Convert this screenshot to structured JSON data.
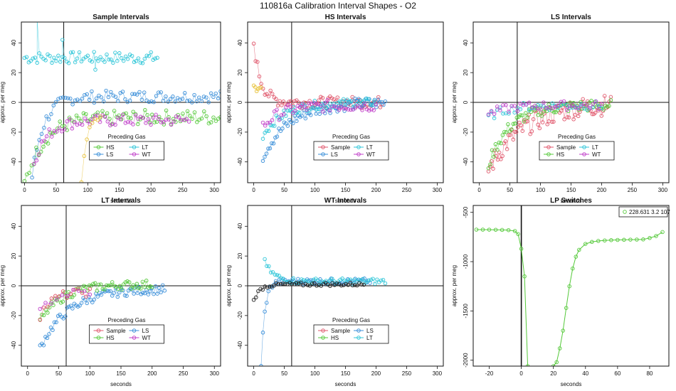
{
  "suptitle": "110816a   Calibration Interval Shapes - O2",
  "chart_data": [
    {
      "type": "scatter",
      "title": "Sample Intervals",
      "xlabel": "seconds",
      "ylabel": "approx. per meg",
      "xlim": [
        -5,
        310
      ],
      "ylim": [
        -54,
        54
      ],
      "xticks": [
        0,
        50,
        100,
        150,
        200,
        250,
        300
      ],
      "yticks": [
        -40,
        -20,
        0,
        20,
        40
      ],
      "vline": 62,
      "hline": 0,
      "legend": {
        "title": "Preceding Gas",
        "placement": "bottom-center",
        "columns": 2,
        "entries": [
          {
            "label": "HS",
            "color": "#55C93A"
          },
          {
            "label": "LT",
            "color": "#2FC6D8"
          },
          {
            "label": "LS",
            "color": "#3A8FD9"
          },
          {
            "label": "WT",
            "color": "#C03FC9"
          }
        ]
      },
      "series": [
        {
          "name": "LT",
          "color": "#2FC6D8",
          "x0": 0,
          "x1": 210,
          "n": 64,
          "start": 30,
          "end": 34,
          "tau": 0,
          "noise": 4,
          "spike": [
            [
              20,
              56
            ],
            [
              60,
              42
            ],
            [
              112,
              22
            ]
          ]
        },
        {
          "name": "LS",
          "color": "#3A8FD9",
          "x0": 12,
          "x1": 310,
          "n": 80,
          "start": -50,
          "end": 4,
          "tau": 18,
          "noise": 4
        },
        {
          "name": "HS",
          "color": "#55C93A",
          "x0": 0,
          "x1": 310,
          "n": 84,
          "start": -55,
          "end": -10,
          "tau": 30,
          "noise": 5
        },
        {
          "name": "WT",
          "color": "#C03FC9",
          "x0": 15,
          "x1": 260,
          "n": 62,
          "start": -40,
          "end": -12,
          "tau": 22,
          "noise": 4
        },
        {
          "name": "Sample",
          "color": "#E8C23A",
          "x0": 90,
          "x1": 120,
          "n": 8,
          "start": -52,
          "end": -10,
          "tau": 8,
          "noise": 2
        }
      ]
    },
    {
      "type": "scatter",
      "title": "HS Intervals",
      "xlabel": "seconds",
      "ylabel": "approx. per meg",
      "xlim": [
        -10,
        310
      ],
      "ylim": [
        -54,
        54
      ],
      "xticks": [
        0,
        50,
        100,
        150,
        200,
        250,
        300
      ],
      "yticks": [
        -40,
        -20,
        0,
        20,
        40
      ],
      "vline": 62,
      "hline": 0,
      "legend": {
        "title": "Preceding Gas",
        "placement": "bottom-center",
        "columns": 2,
        "entries": [
          {
            "label": "Sample",
            "color": "#E0566B"
          },
          {
            "label": "LT",
            "color": "#2FC6D8"
          },
          {
            "label": "LS",
            "color": "#3A8FD9"
          },
          {
            "label": "WT",
            "color": "#C03FC9"
          }
        ]
      },
      "series": [
        {
          "name": "Sample",
          "color": "#E0566B",
          "x0": 0,
          "x1": 210,
          "n": 70,
          "start": 40,
          "end": 0,
          "tau": 12,
          "noise": 4
        },
        {
          "name": "LS",
          "color": "#3A8FD9",
          "x0": 15,
          "x1": 215,
          "n": 70,
          "start": -36,
          "end": 0,
          "tau": 45,
          "noise": 4
        },
        {
          "name": "LT",
          "color": "#2FC6D8",
          "x0": 15,
          "x1": 200,
          "n": 60,
          "start": -22,
          "end": 0,
          "tau": 35,
          "noise": 3
        },
        {
          "name": "WT",
          "color": "#C03FC9",
          "x0": 15,
          "x1": 200,
          "n": 50,
          "start": -16,
          "end": -2,
          "tau": 30,
          "noise": 4
        },
        {
          "name": "HS",
          "color": "#E8C23A",
          "x0": 0,
          "x1": 12,
          "n": 6,
          "start": 12,
          "end": 8,
          "tau": 4,
          "noise": 2
        }
      ]
    },
    {
      "type": "scatter",
      "title": "LS Intervals",
      "xlabel": "seconds",
      "ylabel": "approx. per meg",
      "xlim": [
        -10,
        310
      ],
      "ylim": [
        -54,
        54
      ],
      "xticks": [
        0,
        50,
        100,
        150,
        200,
        250,
        300
      ],
      "yticks": [
        -40,
        -20,
        0,
        20,
        40
      ],
      "vline": 62,
      "hline": 0,
      "legend": {
        "title": "Preceding Gas",
        "placement": "bottom-center",
        "columns": 2,
        "entries": [
          {
            "label": "Sample",
            "color": "#E0566B"
          },
          {
            "label": "LT",
            "color": "#2FC6D8"
          },
          {
            "label": "HS",
            "color": "#55C93A"
          },
          {
            "label": "WT",
            "color": "#C03FC9"
          }
        ]
      },
      "series": [
        {
          "name": "Sample",
          "color": "#E0566B",
          "x0": 15,
          "x1": 215,
          "n": 80,
          "start": -45,
          "end": 0,
          "tau": 60,
          "noise": 7
        },
        {
          "name": "HS",
          "color": "#55C93A",
          "x0": 15,
          "x1": 215,
          "n": 70,
          "start": -42,
          "end": -2,
          "tau": 35,
          "noise": 4
        },
        {
          "name": "LT",
          "color": "#2FC6D8",
          "x0": 15,
          "x1": 200,
          "n": 40,
          "start": -10,
          "end": -2,
          "tau": 30,
          "noise": 3
        },
        {
          "name": "WT",
          "color": "#C03FC9",
          "x0": 15,
          "x1": 200,
          "n": 40,
          "start": -8,
          "end": -2,
          "tau": 30,
          "noise": 3
        }
      ]
    },
    {
      "type": "scatter",
      "title": "LT Intervals",
      "xlabel": "seconds",
      "ylabel": "approx. per meg",
      "xlim": [
        -10,
        310
      ],
      "ylim": [
        -54,
        54
      ],
      "xticks": [
        0,
        50,
        100,
        150,
        200,
        250,
        300
      ],
      "yticks": [
        -40,
        -20,
        0,
        20,
        40
      ],
      "vline": 62,
      "hline": 0,
      "legend": {
        "title": "Preceding Gas",
        "placement": "bottom-center",
        "columns": 2,
        "entries": [
          {
            "label": "Sample",
            "color": "#E0566B"
          },
          {
            "label": "LS",
            "color": "#3A8FD9"
          },
          {
            "label": "HS",
            "color": "#55C93A"
          },
          {
            "label": "WT",
            "color": "#C03FC9"
          }
        ]
      },
      "series": [
        {
          "name": "LS",
          "color": "#3A8FD9",
          "x0": 20,
          "x1": 220,
          "n": 70,
          "start": -42,
          "end": -2,
          "tau": 45,
          "noise": 3
        },
        {
          "name": "HS",
          "color": "#55C93A",
          "x0": 20,
          "x1": 200,
          "n": 60,
          "start": -24,
          "end": 1,
          "tau": 35,
          "noise": 3
        },
        {
          "name": "Sample",
          "color": "#E0566B",
          "x0": 20,
          "x1": 100,
          "n": 14,
          "start": -20,
          "end": -4,
          "tau": 20,
          "noise": 3
        },
        {
          "name": "WT",
          "color": "#C03FC9",
          "x0": 20,
          "x1": 100,
          "n": 10,
          "start": -18,
          "end": -4,
          "tau": 20,
          "noise": 3
        }
      ]
    },
    {
      "type": "scatter",
      "title": "WT Intervals",
      "xlabel": "seconds",
      "ylabel": "approx. per meg",
      "xlim": [
        -10,
        310
      ],
      "ylim": [
        -54,
        54
      ],
      "xticks": [
        0,
        50,
        100,
        150,
        200,
        250,
        300
      ],
      "yticks": [
        -40,
        -20,
        0,
        20,
        40
      ],
      "vline": 62,
      "hline": 0,
      "legend": {
        "title": "Preceding Gas",
        "placement": "bottom-center",
        "columns": 2,
        "entries": [
          {
            "label": "Sample",
            "color": "#E0566B"
          },
          {
            "label": "LS",
            "color": "#3A8FD9"
          },
          {
            "label": "HS",
            "color": "#55C93A"
          },
          {
            "label": "LT",
            "color": "#2FC6D8"
          }
        ]
      },
      "series": [
        {
          "name": "LS",
          "color": "#3A8FD9",
          "x0": 12,
          "x1": 190,
          "n": 60,
          "start": -55,
          "end": 3,
          "tau": 6,
          "noise": 2
        },
        {
          "name": "LT",
          "color": "#2FC6D8",
          "x0": 18,
          "x1": 215,
          "n": 60,
          "start": 16,
          "end": 3,
          "tau": 15,
          "noise": 2
        },
        {
          "name": "WT",
          "color": "#222222",
          "x0": 0,
          "x1": 180,
          "n": 50,
          "start": -10,
          "end": 1,
          "tau": 10,
          "noise": 1.2
        }
      ]
    },
    {
      "type": "line",
      "title": "LP Switches",
      "xlabel": "seconds",
      "ylabel": "approx. per meg",
      "xlim": [
        -30,
        92
      ],
      "ylim": [
        -2060,
        -430
      ],
      "xticks": [
        -20,
        0,
        20,
        40,
        60,
        80
      ],
      "yticks": [
        -2000,
        -1500,
        -1000,
        -500
      ],
      "vline": 0,
      "legend": {
        "placement": "top-right",
        "columns": 1,
        "entries": [
          {
            "label": "228.631 3.2 107",
            "color": "#55C93A"
          }
        ]
      },
      "series": [
        {
          "name": "228.631 3.2 107",
          "color": "#55C93A",
          "x": [
            -28,
            -24,
            -20,
            -16,
            -12,
            -8,
            -4,
            -2,
            0,
            2,
            4,
            20,
            22,
            24,
            26,
            28,
            30,
            32,
            34,
            36,
            40,
            44,
            48,
            52,
            56,
            60,
            64,
            68,
            72,
            76,
            80,
            84,
            88
          ],
          "y": [
            -675,
            -675,
            -676,
            -677,
            -678,
            -680,
            -690,
            -720,
            -870,
            -1150,
            -2060,
            -2060,
            -2020,
            -1880,
            -1700,
            -1470,
            -1250,
            -1070,
            -950,
            -880,
            -820,
            -800,
            -790,
            -785,
            -782,
            -780,
            -778,
            -777,
            -776,
            -775,
            -760,
            -740,
            -700
          ]
        }
      ]
    }
  ]
}
